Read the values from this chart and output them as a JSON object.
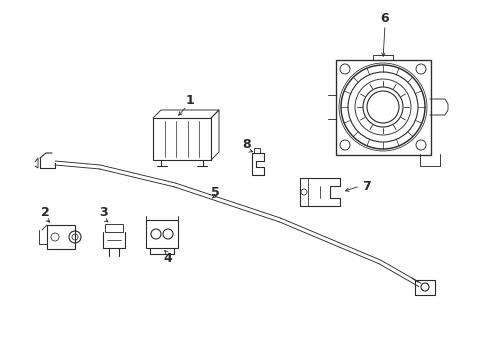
{
  "bg_color": "#ffffff",
  "line_color": "#2a2a2a",
  "label_color": "#000000",
  "fig_width": 4.89,
  "fig_height": 3.6,
  "dpi": 100,
  "lw": 0.8,
  "alw": 0.6,
  "fs": 8,
  "fs_bold": 9
}
